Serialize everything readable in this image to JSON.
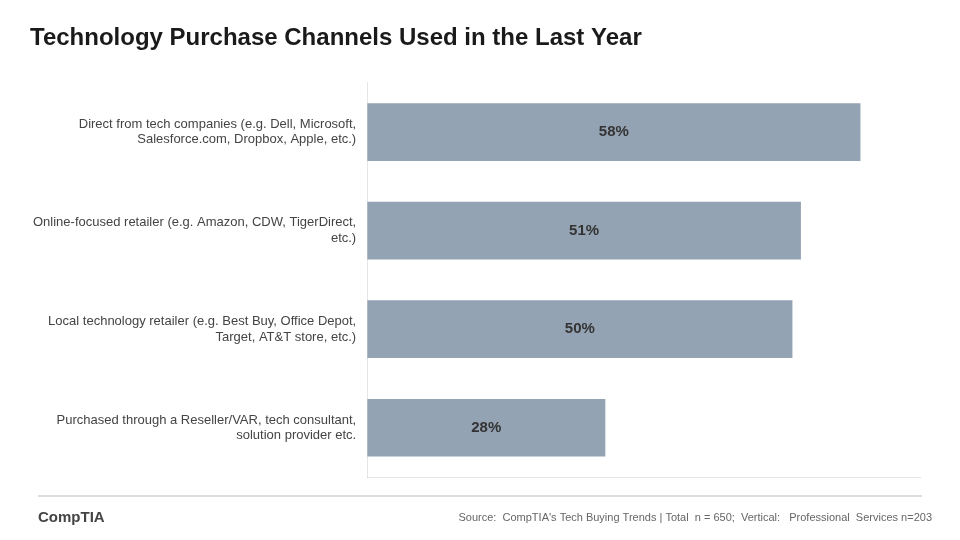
{
  "chart_data": {
    "type": "bar",
    "orientation": "horizontal",
    "title": "Technology Purchase Channels Used in the Last Year",
    "categories": [
      "Direct from tech companies (e.g. Dell, Microsoft,\nSalesforce.com, Dropbox, Apple, etc.)",
      "Online-focused retailer (e.g. Amazon, CDW, TigerDirect,\netc.)",
      "Local technology retailer (e.g. Best Buy, Office Depot,\nTarget, AT&T store, etc.)",
      "Purchased through a Reseller/VAR, tech consultant,\nsolution provider etc."
    ],
    "values": [
      58,
      51,
      50,
      28
    ],
    "value_labels": [
      "58%",
      "51%",
      "50%",
      "28%"
    ],
    "data_labels": true,
    "color": "#94a3b3",
    "xlim": [
      0,
      65
    ],
    "tick_labels": "y",
    "grid": false,
    "annotations": [
      "CompTIA",
      "Source:  CompTIA's Tech Buying Trends | Total  n = 650;  Vertical:   Professional  Services n=203"
    ]
  }
}
